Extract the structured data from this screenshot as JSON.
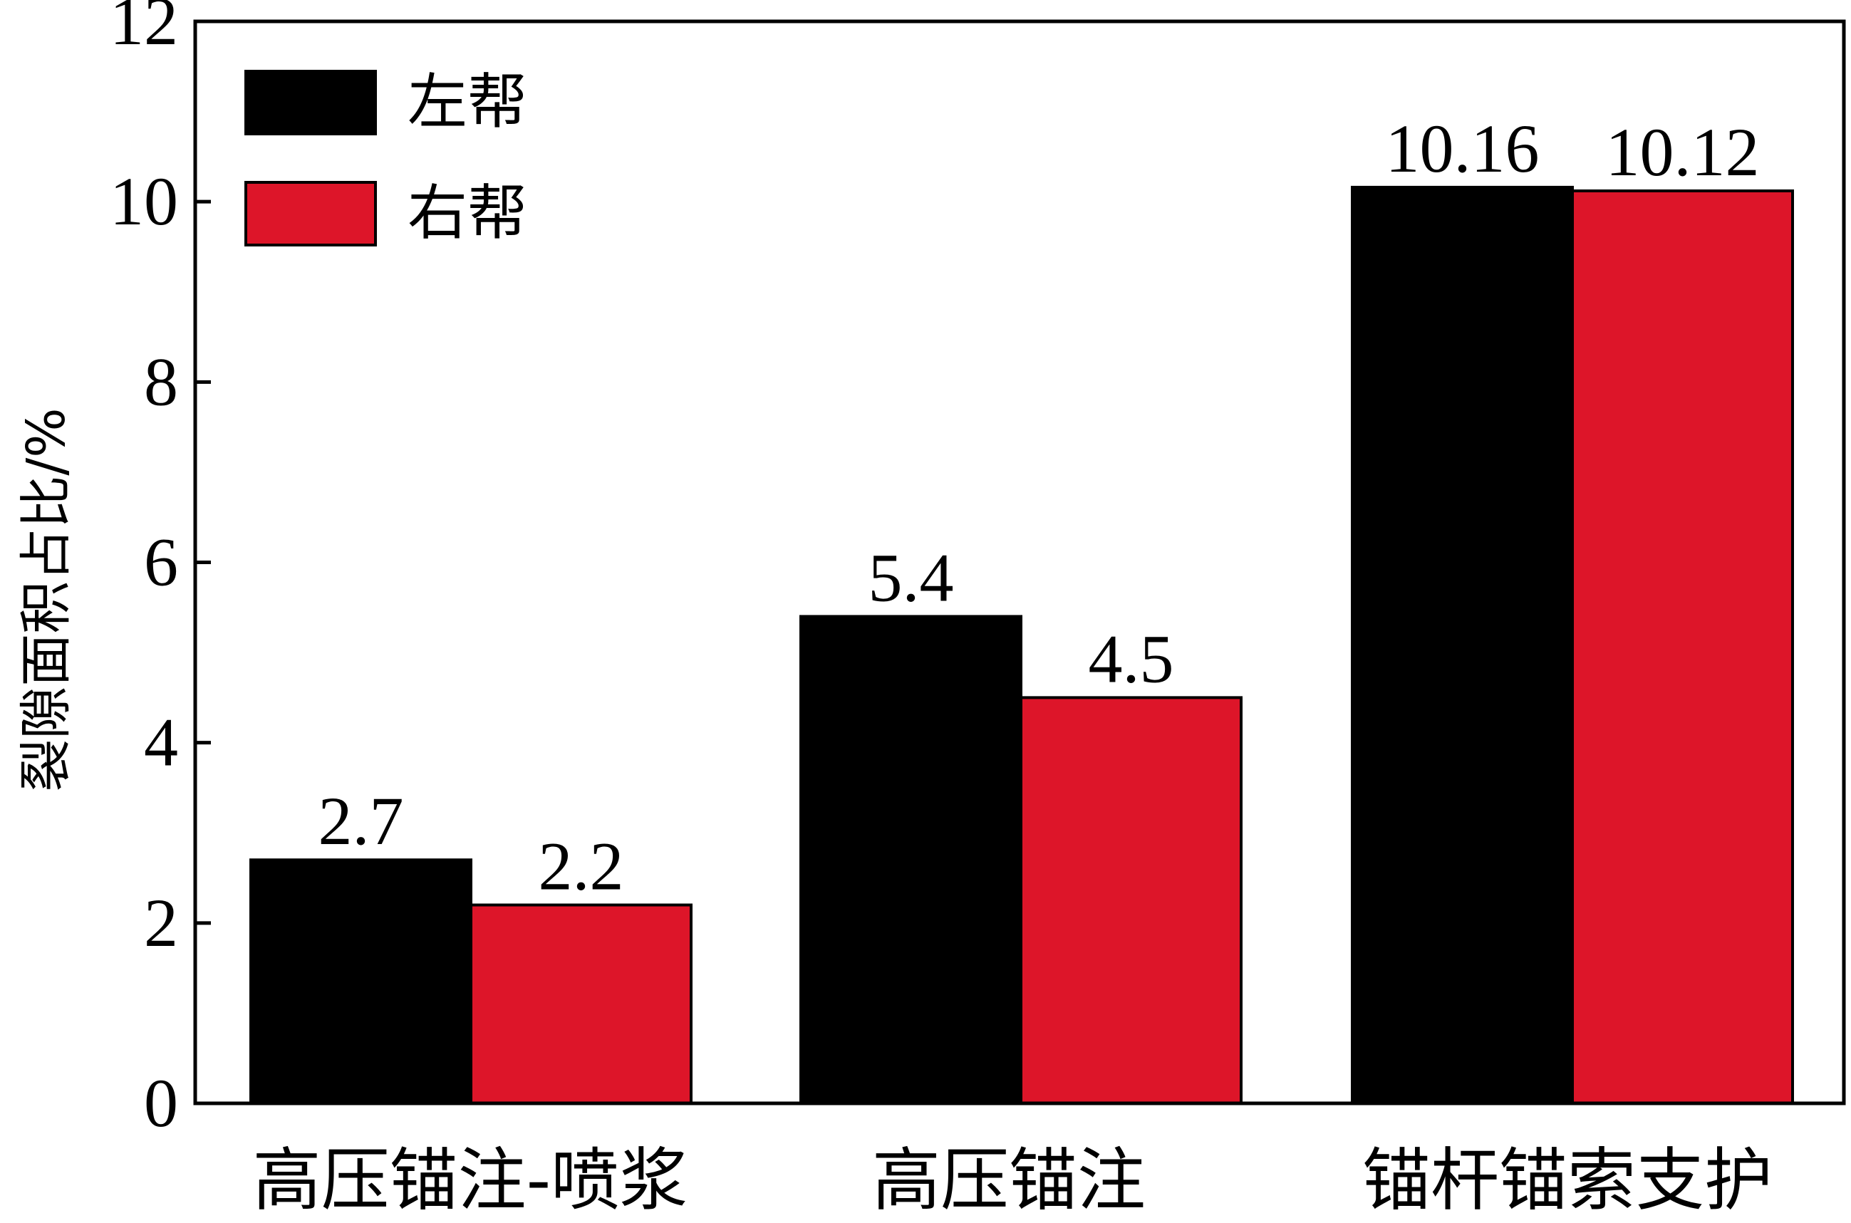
{
  "chart_data": {
    "type": "bar",
    "categories": [
      "高压锚注-喷浆",
      "高压锚注",
      "锚杆锚索支护"
    ],
    "series": [
      {
        "name": "左帮",
        "values": [
          2.7,
          5.4,
          10.16
        ],
        "labels": [
          "2.7",
          "5.4",
          "10.16"
        ],
        "color": "#000000"
      },
      {
        "name": "右帮",
        "values": [
          2.2,
          4.5,
          10.12
        ],
        "labels": [
          "2.2",
          "4.5",
          "10.12"
        ],
        "color": "#dd1529"
      }
    ],
    "title": "",
    "xlabel": "",
    "ylabel": "裂隙面积占比/%",
    "ylim": [
      0,
      12
    ],
    "yticks": [
      0,
      2,
      4,
      6,
      8,
      10,
      12
    ],
    "ytick_labels": [
      "0",
      "2",
      "4",
      "6",
      "8",
      "10",
      "12"
    ],
    "grid": false,
    "legend_position": "top-left"
  }
}
